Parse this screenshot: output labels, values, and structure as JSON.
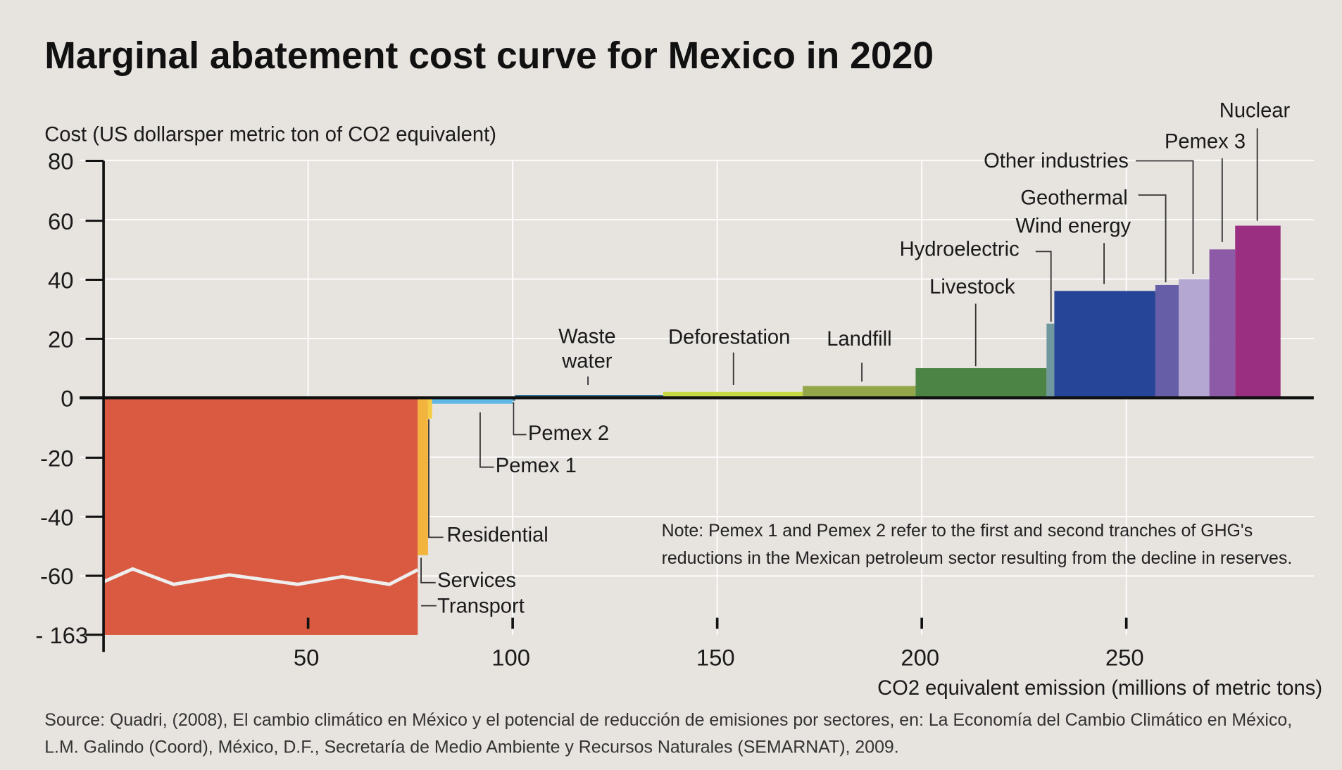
{
  "chart_data": {
    "type": "bar",
    "title": "Marginal abatement cost curve for Mexico in 2020",
    "ylabel": "Cost (US dollarsper metric ton of CO2 equivalent)",
    "xlabel": "CO2 equivalent emission (millions of metric tons)",
    "xlim": [
      0,
      295
    ],
    "ylim": [
      -163,
      80
    ],
    "y_axis_break": "between -60 and -163",
    "xticks": [
      "50",
      "100",
      "150",
      "200",
      "250"
    ],
    "yticks": [
      "80",
      "60",
      "40",
      "20",
      "0",
      "-20",
      "-40",
      "-60",
      "- 163"
    ],
    "grid": true,
    "bars": [
      {
        "name": "Transport",
        "x0": 0,
        "x1": 76.8,
        "value": -163,
        "color": "#d95a40"
      },
      {
        "name": "Services",
        "x0": 76.8,
        "x1": 79.3,
        "value": -53,
        "color": "#f2b43c"
      },
      {
        "name": "Residential",
        "x0": 79.3,
        "x1": 80.3,
        "value": -7,
        "color": "#f5cc45"
      },
      {
        "name": "Pemex 1",
        "x0": 80.3,
        "x1": 100,
        "value": -2,
        "color": "#5fb8e6"
      },
      {
        "name": "Pemex 2",
        "x0": 100,
        "x1": 100.6,
        "value": -1,
        "color": "#2f6f8f"
      },
      {
        "name": "Waste water",
        "x0": 100.6,
        "x1": 136.8,
        "value": 1,
        "color": "#2f6a8c"
      },
      {
        "name": "Deforestation",
        "x0": 136.8,
        "x1": 170.9,
        "value": 2,
        "color": "#c9d845"
      },
      {
        "name": "Landfill",
        "x0": 170.9,
        "x1": 198.5,
        "value": 4,
        "color": "#93a74a"
      },
      {
        "name": "Livestock",
        "x0": 198.5,
        "x1": 230.5,
        "value": 10,
        "color": "#4b8444"
      },
      {
        "name": "Hydroelectric",
        "x0": 230.5,
        "x1": 232.4,
        "value": 25,
        "color": "#6f97a0"
      },
      {
        "name": "Wind energy",
        "x0": 232.4,
        "x1": 257.1,
        "value": 36,
        "color": "#274598"
      },
      {
        "name": "Geothermal",
        "x0": 257.1,
        "x1": 262.8,
        "value": 38,
        "color": "#675ea8"
      },
      {
        "name": "Other industries",
        "x0": 262.8,
        "x1": 270.3,
        "value": 40,
        "color": "#b4a8d2"
      },
      {
        "name": "Pemex 3",
        "x0": 270.3,
        "x1": 276.6,
        "value": 50,
        "color": "#8c5aa6"
      },
      {
        "name": "Nuclear",
        "x0": 276.6,
        "x1": 287.7,
        "value": 58,
        "color": "#9a2e80"
      }
    ],
    "note": [
      "Note:  Pemex 1 and Pemex 2 refer to the first and second tranches of GHG's",
      "reductions in the Mexican petroleum sector resulting from the decline in reserves."
    ],
    "source": [
      "Source: Quadri, (2008), El cambio climático en México y el potencial de reducción de emisiones por sectores, en: La Economía del Cambio Climático en México,",
      "L.M. Galindo (Coord), México, D.F., Secretaría de Medio Ambiente y Recursos Naturales (SEMARNAT), 2009."
    ]
  }
}
